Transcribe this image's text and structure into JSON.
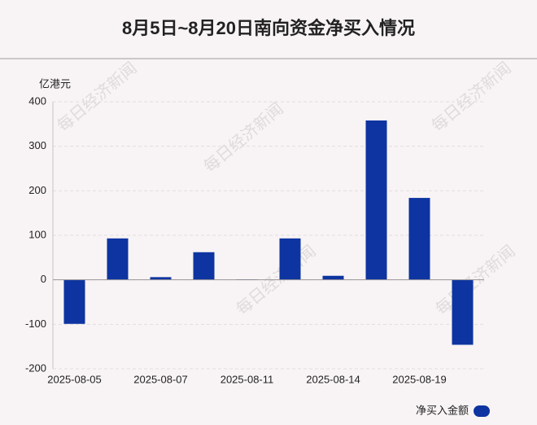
{
  "chart_data": {
    "type": "bar",
    "title": "8月5日~8月20日南向资金净买入情况",
    "y_unit": "亿港元",
    "watermark": "每日经济新闻",
    "categories": [
      "2025-08-05",
      null,
      "2025-08-07",
      null,
      "2025-08-11",
      null,
      "2025-08-14",
      null,
      "2025-08-19",
      null
    ],
    "series": [
      {
        "name": "净买入金额",
        "color": "#0d34a0",
        "values": [
          -99,
          93,
          6,
          62,
          1,
          93,
          9,
          358,
          184,
          -146
        ]
      }
    ],
    "ylim": [
      -200,
      400
    ],
    "yticks": [
      -200,
      -100,
      0,
      100,
      200,
      300,
      400
    ],
    "grid": true,
    "legend": "bottom-right"
  }
}
